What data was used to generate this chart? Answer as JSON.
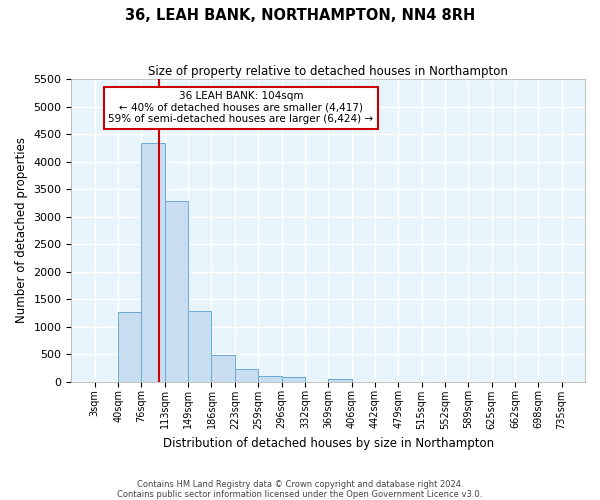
{
  "title": "36, LEAH BANK, NORTHAMPTON, NN4 8RH",
  "subtitle": "Size of property relative to detached houses in Northampton",
  "xlabel": "Distribution of detached houses by size in Northampton",
  "ylabel": "Number of detached properties",
  "bin_labels": [
    "3sqm",
    "40sqm",
    "76sqm",
    "113sqm",
    "149sqm",
    "186sqm",
    "223sqm",
    "259sqm",
    "296sqm",
    "332sqm",
    "369sqm",
    "406sqm",
    "442sqm",
    "479sqm",
    "515sqm",
    "552sqm",
    "589sqm",
    "625sqm",
    "662sqm",
    "698sqm",
    "735sqm"
  ],
  "bar_values": [
    0,
    1270,
    4330,
    3280,
    1280,
    480,
    230,
    100,
    80,
    0,
    50,
    0,
    0,
    0,
    0,
    0,
    0,
    0,
    0,
    0
  ],
  "bar_color": "#c9ddf0",
  "bar_edge_color": "#6aaad4",
  "vline_color": "#cc0000",
  "ylim": [
    0,
    5500
  ],
  "yticks": [
    0,
    500,
    1000,
    1500,
    2000,
    2500,
    3000,
    3500,
    4000,
    4500,
    5000,
    5500
  ],
  "annotation_title": "36 LEAH BANK: 104sqm",
  "annotation_line1": "← 40% of detached houses are smaller (4,417)",
  "annotation_line2": "59% of semi-detached houses are larger (6,424) →",
  "annotation_box_color": "#ffffff",
  "annotation_box_edge": "#cc0000",
  "footer_line1": "Contains HM Land Registry data © Crown copyright and database right 2024.",
  "footer_line2": "Contains public sector information licensed under the Open Government Licence v3.0.",
  "background_color": "#e8f4fb",
  "grid_color": "#ffffff",
  "fig_bg_color": "#ffffff",
  "fig_width": 6.0,
  "fig_height": 5.0,
  "dpi": 100
}
